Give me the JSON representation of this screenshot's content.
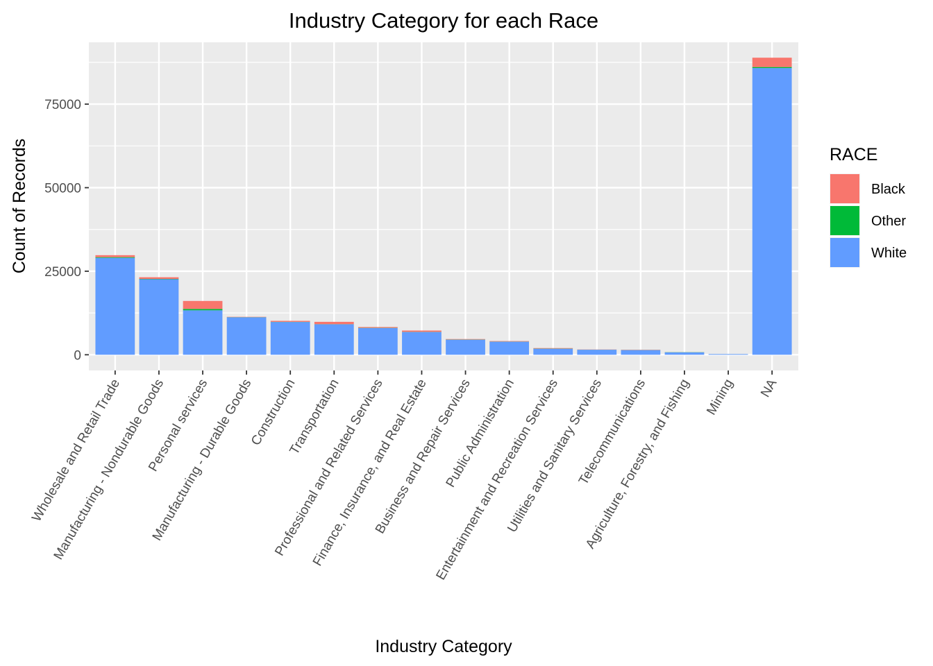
{
  "chart_data": {
    "type": "bar",
    "stacked": true,
    "title": "Industry Category for each Race",
    "xlabel": "Industry Category",
    "ylabel": "Count of Records",
    "ylim": [
      -4700,
      93500
    ],
    "yticks": [
      0,
      25000,
      50000,
      75000
    ],
    "grid": true,
    "legend": {
      "title": "RACE",
      "position": "right"
    },
    "categories": [
      "Wholesale and Retail Trade",
      "Manufacturing - Nondurable Goods",
      "Personal services",
      "Manufacturing - Durable Goods",
      "Construction",
      "Transportation",
      "Professional and Related Services",
      "Finance, Insurance, and Real Estate",
      "Business and Repair Services",
      "Public Administration",
      "Entertainment and Recreation Services",
      "Utilities and Sanitary Services",
      "Telecommunications",
      "Agriculture, Forestry, and Fishing",
      "Mining",
      "NA"
    ],
    "series": [
      {
        "name": "Black",
        "color": "#F8766D",
        "values": [
          600,
          500,
          2400,
          100,
          300,
          700,
          250,
          400,
          150,
          150,
          150,
          60,
          80,
          20,
          10,
          2800
        ]
      },
      {
        "name": "Other",
        "color": "#00BA38",
        "values": [
          200,
          100,
          400,
          50,
          50,
          50,
          50,
          50,
          50,
          50,
          50,
          20,
          20,
          50,
          10,
          300
        ]
      },
      {
        "name": "White",
        "color": "#619CFF",
        "values": [
          29000,
          22600,
          13300,
          11200,
          9800,
          9100,
          8000,
          6800,
          4500,
          3900,
          1800,
          1500,
          1400,
          700,
          200,
          85800
        ]
      }
    ]
  }
}
